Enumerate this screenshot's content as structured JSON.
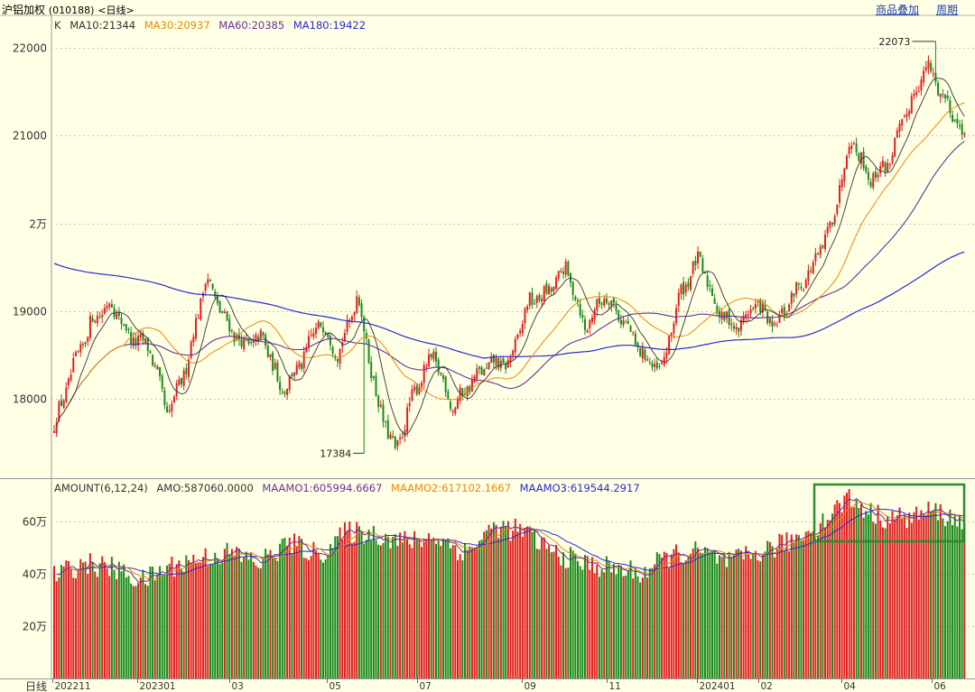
{
  "header": {
    "title": "沪铝加权",
    "code": "(010188)",
    "period": "<日线>",
    "link_overlay": "商品叠加",
    "link_cycle": "周期"
  },
  "price_panel": {
    "legend": {
      "k_label": "K",
      "ma10": "MA10:21344",
      "ma30": "MA30:20937",
      "ma60": "MA60:20385",
      "ma180": "MA180:19422"
    },
    "y_ticks": [
      {
        "value": 22000,
        "label": "22000"
      },
      {
        "value": 21000,
        "label": "21000"
      },
      {
        "value": 20000,
        "label": "2万"
      },
      {
        "value": 19000,
        "label": "19000"
      },
      {
        "value": 18000,
        "label": "18000"
      }
    ],
    "annotations": [
      {
        "label": "22073",
        "value": 22073
      },
      {
        "label": "17384",
        "value": 17384
      }
    ]
  },
  "volume_panel": {
    "legend": {
      "name": "AMOUNT(6,12,24)",
      "amo": "AMO:587060.0000",
      "maamo1": "MAAMO1:605994.6667",
      "maamo2": "MAAMO2:617102.1667",
      "maamo3": "MAAMO3:619544.2917"
    },
    "y_ticks": [
      {
        "value": 600000,
        "label": "60万"
      },
      {
        "value": 400000,
        "label": "40万"
      },
      {
        "value": 200000,
        "label": "20万"
      }
    ]
  },
  "x_axis": {
    "period_label": "日线",
    "ticks": [
      "202211",
      "202301",
      "03",
      "05",
      "07",
      "09",
      "11",
      "202401",
      "02",
      "04",
      "06"
    ]
  },
  "colors": {
    "background": "#ffffe6",
    "up": "#e02020",
    "down": "#1a8a1a",
    "ma10": "#333333",
    "ma30": "#e88a0a",
    "ma60": "#6a2f9a",
    "ma180": "#2a2ad0",
    "highlight_box": "#2e8b2e"
  },
  "chart_data": {
    "type": "candlestick",
    "title": "沪铝加权 (010188) <日线>",
    "price_anchor_points": [
      [
        "202211",
        17700
      ],
      [
        "202211",
        18350
      ],
      [
        "202212",
        18900
      ],
      [
        "202212",
        19100
      ],
      [
        "202212",
        18700
      ],
      [
        "202301",
        18600
      ],
      [
        "202301",
        17800
      ],
      [
        "202301",
        18400
      ],
      [
        "202302",
        19400
      ],
      [
        "202302",
        18900
      ],
      [
        "202302",
        18600
      ],
      [
        "03",
        18700
      ],
      [
        "03",
        18100
      ],
      [
        "04",
        18400
      ],
      [
        "04",
        18900
      ],
      [
        "05",
        18500
      ],
      [
        "05",
        19200
      ],
      [
        "05",
        18000
      ],
      [
        "06",
        17384
      ],
      [
        "06",
        18100
      ],
      [
        "06",
        18500
      ],
      [
        "07",
        17900
      ],
      [
        "07",
        18200
      ],
      [
        "08",
        18400
      ],
      [
        "08",
        18400
      ],
      [
        "09",
        19100
      ],
      [
        "09",
        19200
      ],
      [
        "10",
        19500
      ],
      [
        "10",
        18800
      ],
      [
        "11",
        19200
      ],
      [
        "11",
        18900
      ],
      [
        "11",
        18500
      ],
      [
        "12",
        18300
      ],
      [
        "12",
        19200
      ],
      [
        "202401",
        19600
      ],
      [
        "202401",
        19000
      ],
      [
        "202401",
        18800
      ],
      [
        "02",
        19100
      ],
      [
        "02",
        18800
      ],
      [
        "03",
        19200
      ],
      [
        "03",
        19500
      ],
      [
        "03",
        20000
      ],
      [
        "04",
        21000
      ],
      [
        "04",
        20500
      ],
      [
        "05",
        20700
      ],
      [
        "05",
        21300
      ],
      [
        "05",
        21800
      ],
      [
        "06",
        21400
      ],
      [
        "06",
        21000
      ]
    ],
    "ma_last_values": {
      "MA10": 21344,
      "MA30": 20937,
      "MA60": 20385,
      "MA180": 19422
    },
    "price_high": 22073,
    "price_low": 17384,
    "amount_anchor_points": [
      [
        "202211",
        390000
      ],
      [
        "202212",
        440000
      ],
      [
        "202212",
        420000
      ],
      [
        "202301",
        370000
      ],
      [
        "202301",
        430000
      ],
      [
        "03",
        460000
      ],
      [
        "04",
        480000
      ],
      [
        "04",
        440000
      ],
      [
        "05",
        520000
      ],
      [
        "05",
        470000
      ],
      [
        "06",
        560000
      ],
      [
        "07",
        550000
      ],
      [
        "07",
        520000
      ],
      [
        "08",
        540000
      ],
      [
        "08",
        480000
      ],
      [
        "09",
        580000
      ],
      [
        "10",
        560000
      ],
      [
        "10",
        480000
      ],
      [
        "11",
        440000
      ],
      [
        "11",
        420000
      ],
      [
        "12",
        400000
      ],
      [
        "202401",
        470000
      ],
      [
        "202401",
        480000
      ],
      [
        "02",
        440000
      ],
      [
        "03",
        480000
      ],
      [
        "03",
        520000
      ],
      [
        "04",
        580000
      ],
      [
        "04",
        690000
      ],
      [
        "05",
        620000
      ],
      [
        "05",
        610000
      ],
      [
        "06",
        640000
      ],
      [
        "06",
        587060
      ]
    ],
    "amount_last": {
      "AMO": 587060,
      "MAAMO1": 605994.6667,
      "MAAMO2": 617102.1667,
      "MAAMO3": 619544.2917
    },
    "price_ylim": [
      17100,
      22400
    ],
    "amount_ylim": [
      0,
      760000
    ],
    "grid": true
  }
}
